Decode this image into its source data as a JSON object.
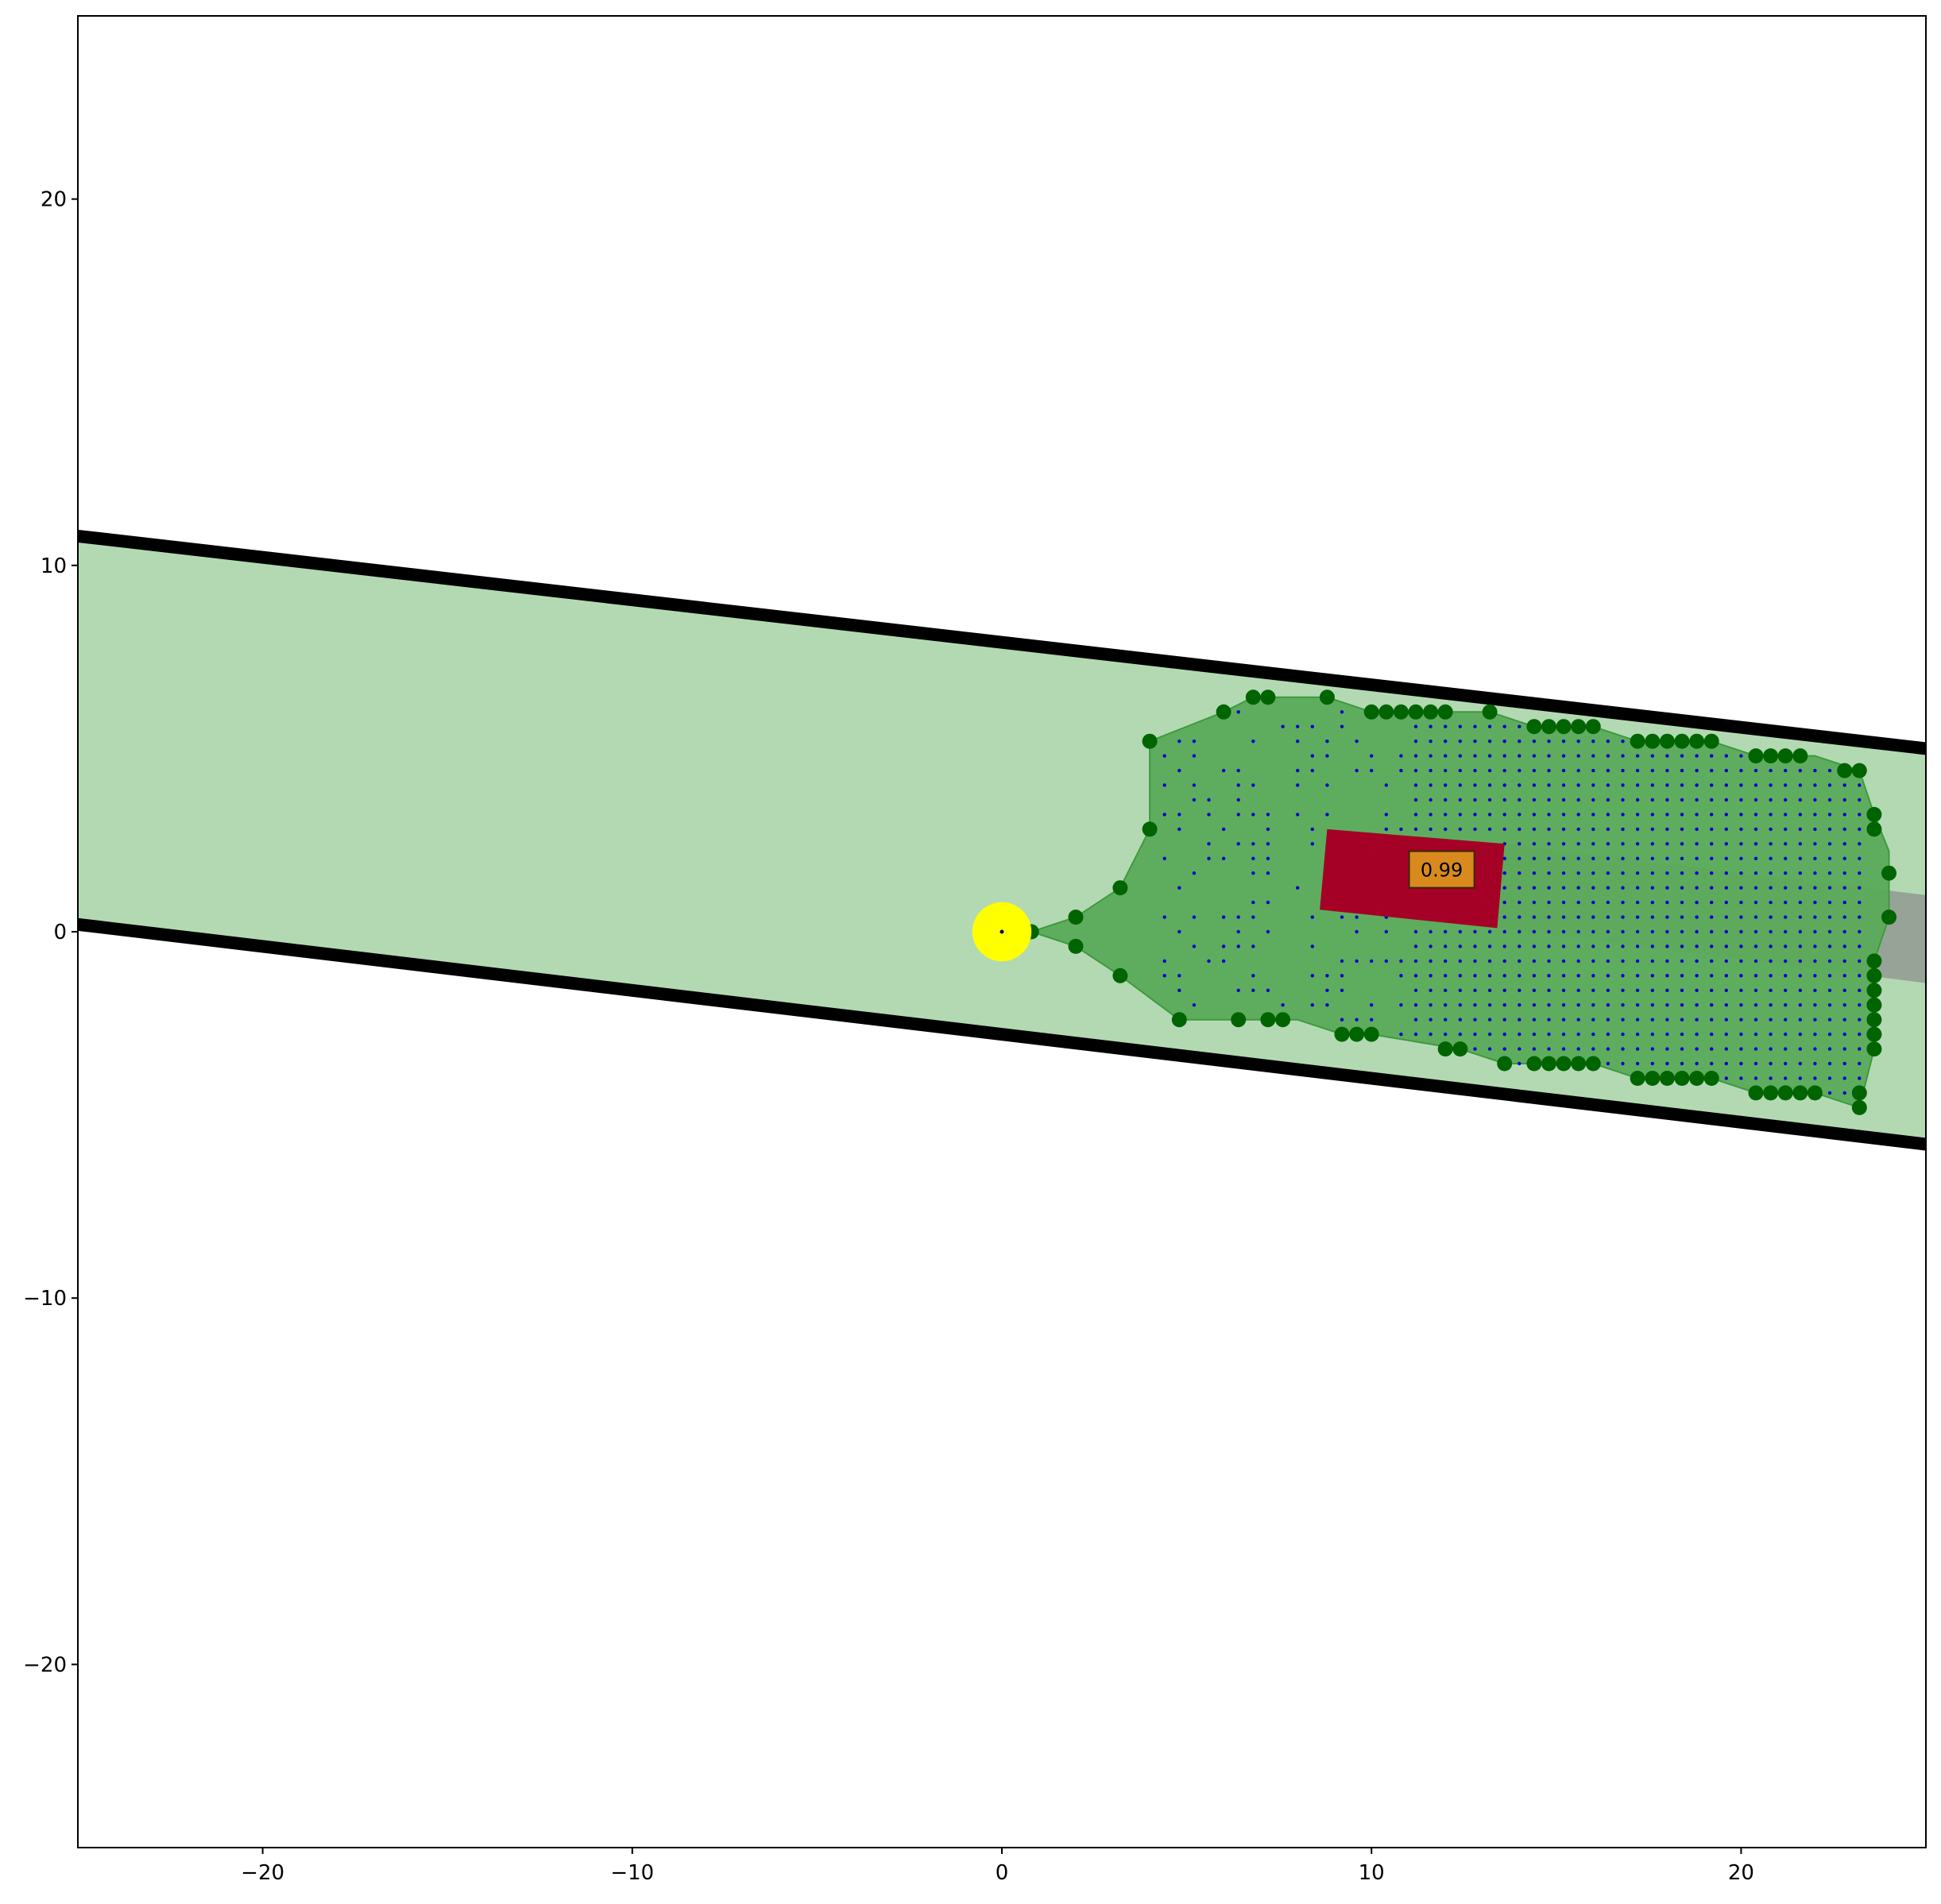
{
  "chart_data": {
    "type": "scatter",
    "title": "",
    "xlabel": "",
    "ylabel": "",
    "xlim": [
      -25,
      25
    ],
    "ylim": [
      -25,
      25
    ],
    "grid": false,
    "x_ticks": [
      -20,
      -10,
      0,
      10,
      20
    ],
    "y_ticks": [
      20,
      10,
      0,
      -10,
      -20
    ],
    "x_tick_labels": [
      "−20",
      "−10",
      "0",
      "10",
      "20"
    ],
    "y_tick_labels": [
      "20",
      "10",
      "0",
      "−10",
      "−20"
    ],
    "colors": {
      "road_fill": "#b3d9b3",
      "road_edge": "#000000",
      "free_space": "#5aab5a",
      "boundary_points": "#006400",
      "grid_points": "#0000cc",
      "vehicle": "#a50026",
      "label_box": "#d98a1e",
      "ego": "#ffff00",
      "trail": "#8c8c8c"
    },
    "road": {
      "upper_edge": [
        [
          -25,
          10.8
        ],
        [
          25,
          5.0
        ]
      ],
      "lower_edge": [
        [
          -25,
          0.2
        ],
        [
          25,
          -5.8
        ]
      ]
    },
    "free_space_polygon": [
      [
        0.8,
        0.0
      ],
      [
        2.0,
        0.4
      ],
      [
        3.2,
        1.2
      ],
      [
        4.0,
        2.8
      ],
      [
        4.0,
        5.2
      ],
      [
        6.0,
        6.0
      ],
      [
        6.8,
        6.4
      ],
      [
        8.8,
        6.4
      ],
      [
        10.0,
        6.0
      ],
      [
        13.2,
        6.0
      ],
      [
        14.4,
        5.6
      ],
      [
        16.0,
        5.6
      ],
      [
        17.2,
        5.2
      ],
      [
        19.2,
        5.2
      ],
      [
        20.4,
        4.8
      ],
      [
        22.0,
        4.8
      ],
      [
        23.2,
        4.4
      ],
      [
        23.6,
        3.2
      ],
      [
        24.0,
        2.2
      ],
      [
        24.0,
        0.4
      ],
      [
        23.6,
        -0.8
      ],
      [
        23.6,
        -3.2
      ],
      [
        23.2,
        -4.8
      ],
      [
        22.0,
        -4.4
      ],
      [
        20.4,
        -4.4
      ],
      [
        19.2,
        -4.0
      ],
      [
        17.2,
        -4.0
      ],
      [
        16.0,
        -3.6
      ],
      [
        14.4,
        -3.6
      ],
      [
        13.6,
        -3.6
      ],
      [
        12.4,
        -3.2
      ],
      [
        10.0,
        -2.8
      ],
      [
        9.2,
        -2.8
      ],
      [
        8.0,
        -2.4
      ],
      [
        6.4,
        -2.4
      ],
      [
        4.8,
        -2.4
      ],
      [
        3.2,
        -1.2
      ],
      [
        2.0,
        -0.4
      ],
      [
        0.8,
        0.0
      ]
    ],
    "boundary_points": [
      [
        0.8,
        0.0
      ],
      [
        2.0,
        0.4
      ],
      [
        2.0,
        -0.4
      ],
      [
        3.2,
        1.2
      ],
      [
        3.2,
        -1.2
      ],
      [
        4.0,
        2.8
      ],
      [
        4.0,
        5.2
      ],
      [
        4.8,
        -2.4
      ],
      [
        6.0,
        6.0
      ],
      [
        6.4,
        -2.4
      ],
      [
        6.8,
        6.4
      ],
      [
        7.2,
        6.4
      ],
      [
        7.2,
        -2.4
      ],
      [
        7.6,
        -2.4
      ],
      [
        8.8,
        6.4
      ],
      [
        9.2,
        -2.8
      ],
      [
        9.6,
        -2.8
      ],
      [
        10.0,
        6.0
      ],
      [
        10.0,
        -2.8
      ],
      [
        10.4,
        6.0
      ],
      [
        10.8,
        6.0
      ],
      [
        11.2,
        6.0
      ],
      [
        11.6,
        6.0
      ],
      [
        12.0,
        6.0
      ],
      [
        12.0,
        -3.2
      ],
      [
        12.4,
        -3.2
      ],
      [
        13.2,
        6.0
      ],
      [
        13.6,
        -3.6
      ],
      [
        14.4,
        5.6
      ],
      [
        14.4,
        -3.6
      ],
      [
        14.8,
        5.6
      ],
      [
        14.8,
        -3.6
      ],
      [
        15.2,
        5.6
      ],
      [
        15.2,
        -3.6
      ],
      [
        15.6,
        5.6
      ],
      [
        15.6,
        -3.6
      ],
      [
        16.0,
        5.6
      ],
      [
        16.0,
        -3.6
      ],
      [
        17.2,
        5.2
      ],
      [
        17.2,
        -4.0
      ],
      [
        17.6,
        5.2
      ],
      [
        17.6,
        -4.0
      ],
      [
        18.0,
        5.2
      ],
      [
        18.0,
        -4.0
      ],
      [
        18.4,
        5.2
      ],
      [
        18.4,
        -4.0
      ],
      [
        18.8,
        5.2
      ],
      [
        18.8,
        -4.0
      ],
      [
        19.2,
        5.2
      ],
      [
        19.2,
        -4.0
      ],
      [
        20.4,
        4.8
      ],
      [
        20.4,
        -4.4
      ],
      [
        20.8,
        4.8
      ],
      [
        20.8,
        -4.4
      ],
      [
        21.2,
        4.8
      ],
      [
        21.2,
        -4.4
      ],
      [
        21.6,
        4.8
      ],
      [
        21.6,
        -4.4
      ],
      [
        22.0,
        -4.4
      ],
      [
        22.8,
        4.4
      ],
      [
        23.2,
        4.4
      ],
      [
        23.2,
        -4.4
      ],
      [
        23.2,
        -4.8
      ],
      [
        23.6,
        3.2
      ],
      [
        23.6,
        2.8
      ],
      [
        23.6,
        -0.8
      ],
      [
        23.6,
        -1.2
      ],
      [
        23.6,
        -1.6
      ],
      [
        23.6,
        -2.0
      ],
      [
        23.6,
        -2.4
      ],
      [
        23.6,
        -2.8
      ],
      [
        23.6,
        -3.2
      ],
      [
        24.0,
        1.6
      ],
      [
        24.0,
        0.4
      ]
    ],
    "grid_points": {
      "x_range": [
        4.4,
        23.2
      ],
      "y_range": [
        -4.4,
        6.0
      ],
      "step": 0.4,
      "note": "sampled inside free_space_polygon"
    },
    "vehicle": {
      "corners": [
        [
          8.8,
          2.8
        ],
        [
          13.6,
          2.4
        ],
        [
          13.4,
          0.1
        ],
        [
          8.6,
          0.6
        ]
      ],
      "score": "0.99",
      "label_anchor": [
        11.9,
        1.7
      ]
    },
    "trail": {
      "corners": [
        [
          13.6,
          2.4
        ],
        [
          25.0,
          1.0
        ],
        [
          25.0,
          -1.4
        ],
        [
          13.4,
          0.1
        ]
      ]
    },
    "ego": {
      "center": [
        0.0,
        0.0
      ],
      "radius": 0.8
    }
  }
}
